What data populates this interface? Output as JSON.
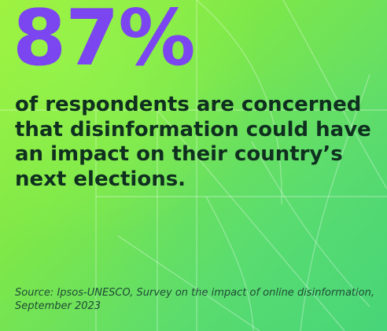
{
  "stat": {
    "value": "87%"
  },
  "headline": {
    "text": "of respondents are concerned that disinformation could have an impact on their country’s next elections."
  },
  "source": {
    "text": "Source: Ipsos-UNESCO, Survey on the impact of online disinformation, September 2023"
  },
  "colors": {
    "stat": "#7b45f0",
    "headline": "#0f2f1f",
    "source": "#1f4a36",
    "background_start": "#9ef03a",
    "background_end": "#41cf78"
  }
}
